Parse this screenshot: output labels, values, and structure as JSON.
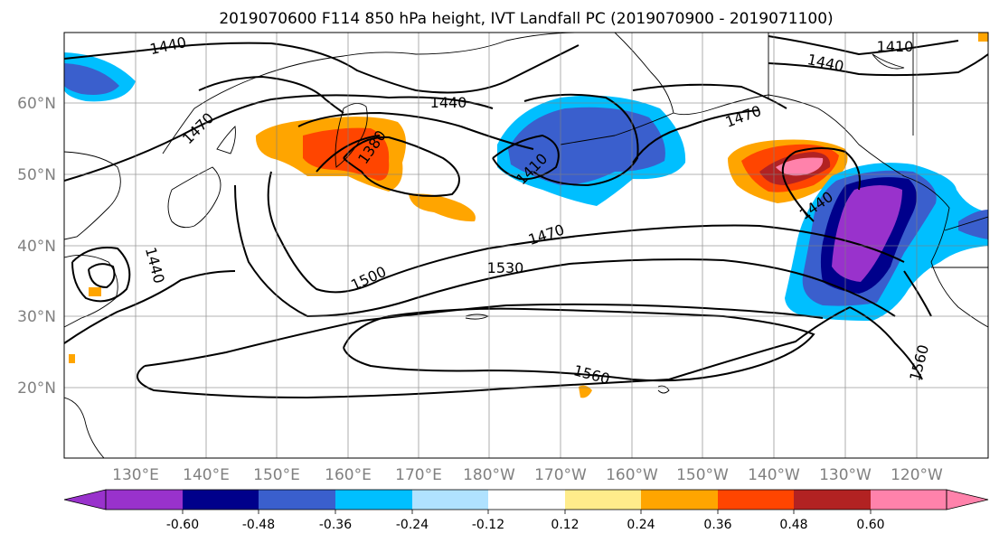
{
  "title": "2019070600 F114 850 hPa height, IVT Landfall PC (2019070900 - 2019071100)",
  "map": {
    "lon_labels": [
      "130°E",
      "140°E",
      "150°E",
      "160°E",
      "170°E",
      "180°W",
      "170°W",
      "160°W",
      "150°W",
      "140°W",
      "130°W",
      "120°W"
    ],
    "lat_labels": [
      "20°N",
      "30°N",
      "40°N",
      "50°N",
      "60°N"
    ],
    "grid": true,
    "contour_labels": [
      "1440",
      "1470",
      "1440",
      "1410",
      "1470",
      "1380",
      "1410",
      "1440",
      "1470",
      "1440",
      "1500",
      "1530",
      "1440",
      "1560",
      "1560"
    ]
  },
  "colorbar": {
    "colors": [
      "#9932CC",
      "#00008B",
      "#3A5FCD",
      "#00BFFF",
      "#B0E2FF",
      "#FFFFFF",
      "#FFEC8B",
      "#FFA500",
      "#FF4500",
      "#B22222",
      "#FF82AB"
    ],
    "ticks": [
      "-0.60",
      "-0.48",
      "-0.36",
      "-0.24",
      "-0.12",
      "0.12",
      "0.24",
      "0.36",
      "0.48",
      "0.60"
    ],
    "extend": "both"
  }
}
